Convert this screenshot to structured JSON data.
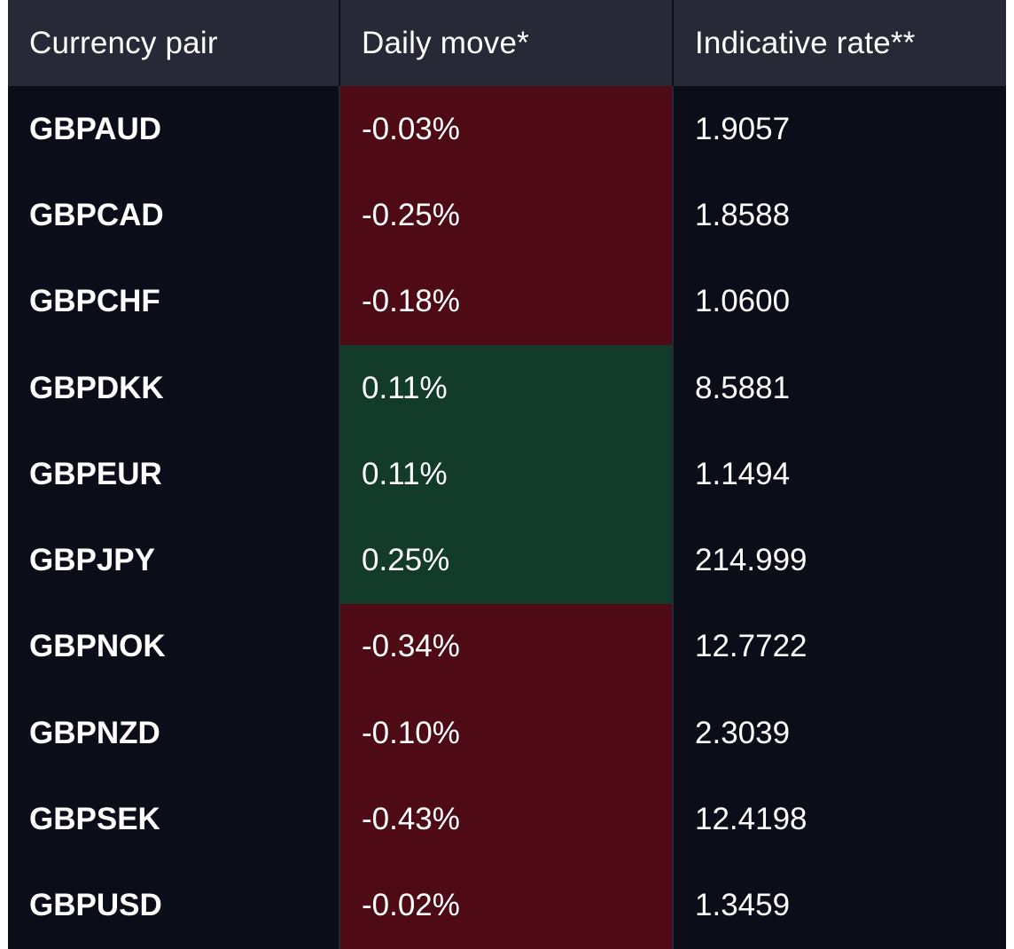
{
  "table": {
    "headers": {
      "pair": "Currency pair",
      "move": "Daily move*",
      "rate": "Indicative rate**"
    },
    "rows": [
      {
        "pair": "GBPAUD",
        "move": "-0.03%",
        "direction": "down",
        "rate": "1.9057"
      },
      {
        "pair": "GBPCAD",
        "move": "-0.25%",
        "direction": "down",
        "rate": "1.8588"
      },
      {
        "pair": "GBPCHF",
        "move": "-0.18%",
        "direction": "down",
        "rate": "1.0600"
      },
      {
        "pair": "GBPDKK",
        "move": "0.11%",
        "direction": "up",
        "rate": "8.5881"
      },
      {
        "pair": "GBPEUR",
        "move": "0.11%",
        "direction": "up",
        "rate": "1.1494"
      },
      {
        "pair": "GBPJPY",
        "move": "0.25%",
        "direction": "up",
        "rate": "214.999"
      },
      {
        "pair": "GBPNOK",
        "move": "-0.34%",
        "direction": "down",
        "rate": "12.7722"
      },
      {
        "pair": "GBPNZD",
        "move": "-0.10%",
        "direction": "down",
        "rate": "2.3039"
      },
      {
        "pair": "GBPSEK",
        "move": "-0.43%",
        "direction": "down",
        "rate": "12.4198"
      },
      {
        "pair": "GBPUSD",
        "move": "-0.02%",
        "direction": "down",
        "rate": "1.3459"
      }
    ]
  },
  "colors": {
    "background": "#0b0d18",
    "header": "#272a36",
    "negative": "#4f0b15",
    "positive": "#123b29",
    "text": "#ffffff"
  }
}
